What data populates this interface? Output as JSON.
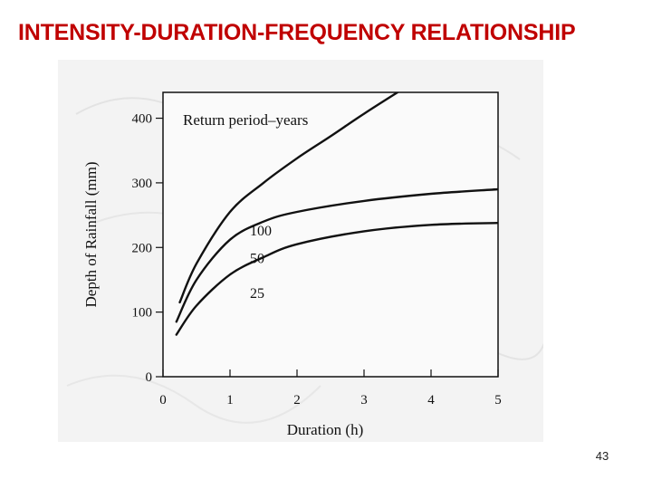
{
  "slide": {
    "title": "INTENSITY-DURATION-FREQUENCY RELATIONSHIP",
    "page_number": "43"
  },
  "chart_data": {
    "type": "line",
    "xlabel": "Duration (h)",
    "ylabel": "Depth of Rainfall (mm)",
    "xlim": [
      0,
      5
    ],
    "ylim": [
      0,
      440
    ],
    "xticks": [
      "0",
      "1",
      "2",
      "3",
      "4",
      "5"
    ],
    "yticks": [
      "0",
      "100",
      "200",
      "300",
      "400"
    ],
    "legend_title": "Return period–years",
    "grid": false,
    "series": [
      {
        "name": "100",
        "x": [
          0.25,
          0.5,
          1.0,
          1.5,
          2.0,
          2.5,
          3.0,
          3.5
        ],
        "y": [
          115,
          175,
          255,
          300,
          338,
          372,
          407,
          440
        ]
      },
      {
        "name": "50",
        "x": [
          0.2,
          0.5,
          1.0,
          1.5,
          2.0,
          3.0,
          4.0,
          5.0
        ],
        "y": [
          85,
          150,
          212,
          240,
          255,
          272,
          283,
          290
        ]
      },
      {
        "name": "25",
        "x": [
          0.2,
          0.5,
          1.0,
          1.5,
          2.0,
          3.0,
          4.0,
          5.0
        ],
        "y": [
          65,
          110,
          158,
          185,
          205,
          225,
          235,
          238
        ]
      }
    ]
  }
}
